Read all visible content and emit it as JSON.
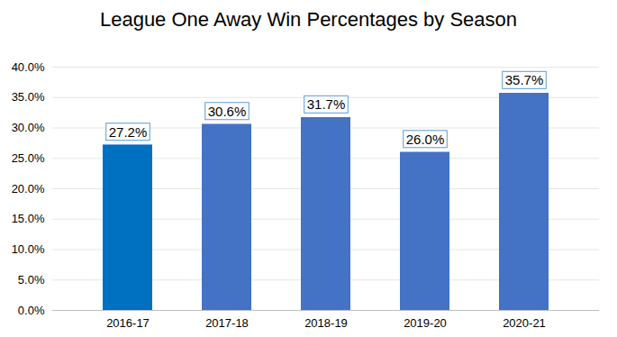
{
  "chart_data": {
    "type": "bar",
    "title": "League One Away Win Percentages by Season",
    "categories": [
      "2016-17",
      "2017-18",
      "2018-19",
      "2019-20",
      "2020-21"
    ],
    "values": [
      27.2,
      30.6,
      31.7,
      26.0,
      35.7
    ],
    "value_labels": [
      "27.2%",
      "30.6%",
      "31.7%",
      "26.0%",
      "35.7%"
    ],
    "colors": [
      "#0070c0",
      "#4472c4",
      "#4472c4",
      "#4472c4",
      "#4472c4"
    ],
    "ylim": [
      0,
      40
    ],
    "yticks": [
      {
        "value": 0,
        "label": "0.0%"
      },
      {
        "value": 5,
        "label": "5.0%"
      },
      {
        "value": 10,
        "label": "10.0%"
      },
      {
        "value": 15,
        "label": "15.0%"
      },
      {
        "value": 20,
        "label": "20.0%"
      },
      {
        "value": 25,
        "label": "25.0%"
      },
      {
        "value": 30,
        "label": "30.0%"
      },
      {
        "value": 35,
        "label": "35.0%"
      },
      {
        "value": 40,
        "label": "40.0%"
      }
    ],
    "grid": true,
    "data_labels": true
  }
}
